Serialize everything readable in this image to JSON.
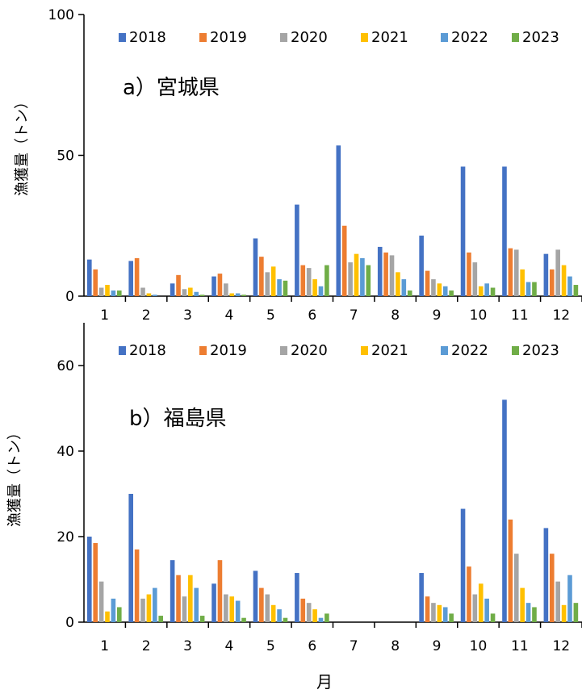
{
  "chart_data": [
    {
      "type": "bar",
      "title": "a）宮城県",
      "ylabel": "漁獲量（トン）",
      "xlabel": "",
      "ylim": [
        0,
        100
      ],
      "yticks": [
        0,
        50,
        100
      ],
      "legend_position": "top",
      "categories": [
        "1",
        "2",
        "3",
        "4",
        "5",
        "6",
        "7",
        "8",
        "9",
        "10",
        "11",
        "12"
      ],
      "series": [
        {
          "name": "2018",
          "color": "#4472C4",
          "values": [
            13,
            12.5,
            4.5,
            7,
            20.5,
            32.5,
            53.5,
            17.5,
            21.5,
            46,
            46,
            15
          ]
        },
        {
          "name": "2019",
          "color": "#ED7D31",
          "values": [
            9.5,
            13.5,
            7.5,
            8,
            14,
            11,
            25,
            15.5,
            9,
            15.5,
            17,
            9.5
          ]
        },
        {
          "name": "2020",
          "color": "#A5A5A5",
          "values": [
            3,
            3,
            2.5,
            4.5,
            8.5,
            10,
            12,
            14.5,
            6,
            12,
            16.5,
            16.5
          ]
        },
        {
          "name": "2021",
          "color": "#FFC000",
          "values": [
            4,
            1,
            3,
            1,
            10.5,
            6,
            15,
            8.5,
            4.5,
            3.5,
            9.5,
            11
          ]
        },
        {
          "name": "2022",
          "color": "#5B9BD5",
          "values": [
            2,
            0.5,
            1.5,
            1,
            6,
            3.5,
            13.5,
            6,
            3.5,
            4.5,
            5,
            7
          ]
        },
        {
          "name": "2023",
          "color": "#70AD47",
          "values": [
            2,
            0,
            0.5,
            0.5,
            5.5,
            11,
            11,
            2,
            2,
            3,
            5,
            4
          ]
        }
      ]
    },
    {
      "type": "bar",
      "title": "b）福島県",
      "ylabel": "漁獲量（トン）",
      "xlabel": "月",
      "ylim": [
        0,
        70
      ],
      "yticks": [
        0,
        20,
        40,
        60
      ],
      "legend_position": "top",
      "categories": [
        "1",
        "2",
        "3",
        "4",
        "5",
        "6",
        "7",
        "8",
        "9",
        "10",
        "11",
        "12"
      ],
      "series": [
        {
          "name": "2018",
          "color": "#4472C4",
          "values": [
            20,
            30,
            14.5,
            9,
            12,
            11.5,
            0,
            0,
            11.5,
            26.5,
            52,
            22
          ]
        },
        {
          "name": "2019",
          "color": "#ED7D31",
          "values": [
            18.5,
            17,
            11,
            14.5,
            8,
            5.5,
            0,
            0,
            6,
            13,
            24,
            16
          ]
        },
        {
          "name": "2020",
          "color": "#A5A5A5",
          "values": [
            9.5,
            5.5,
            6,
            6.5,
            6.5,
            4.5,
            0,
            0,
            4.5,
            6.5,
            16,
            9.5
          ]
        },
        {
          "name": "2021",
          "color": "#FFC000",
          "values": [
            2.5,
            6.5,
            11,
            6,
            4,
            3,
            0,
            0,
            4,
            9,
            8,
            4
          ]
        },
        {
          "name": "2022",
          "color": "#5B9BD5",
          "values": [
            5.5,
            8,
            8,
            5,
            3,
            1,
            0,
            0,
            3.5,
            5.5,
            4.5,
            11
          ]
        },
        {
          "name": "2023",
          "color": "#70AD47",
          "values": [
            3.5,
            1.5,
            1.5,
            1,
            1,
            2,
            0,
            0,
            2,
            2,
            3.5,
            4.5
          ]
        }
      ]
    }
  ]
}
